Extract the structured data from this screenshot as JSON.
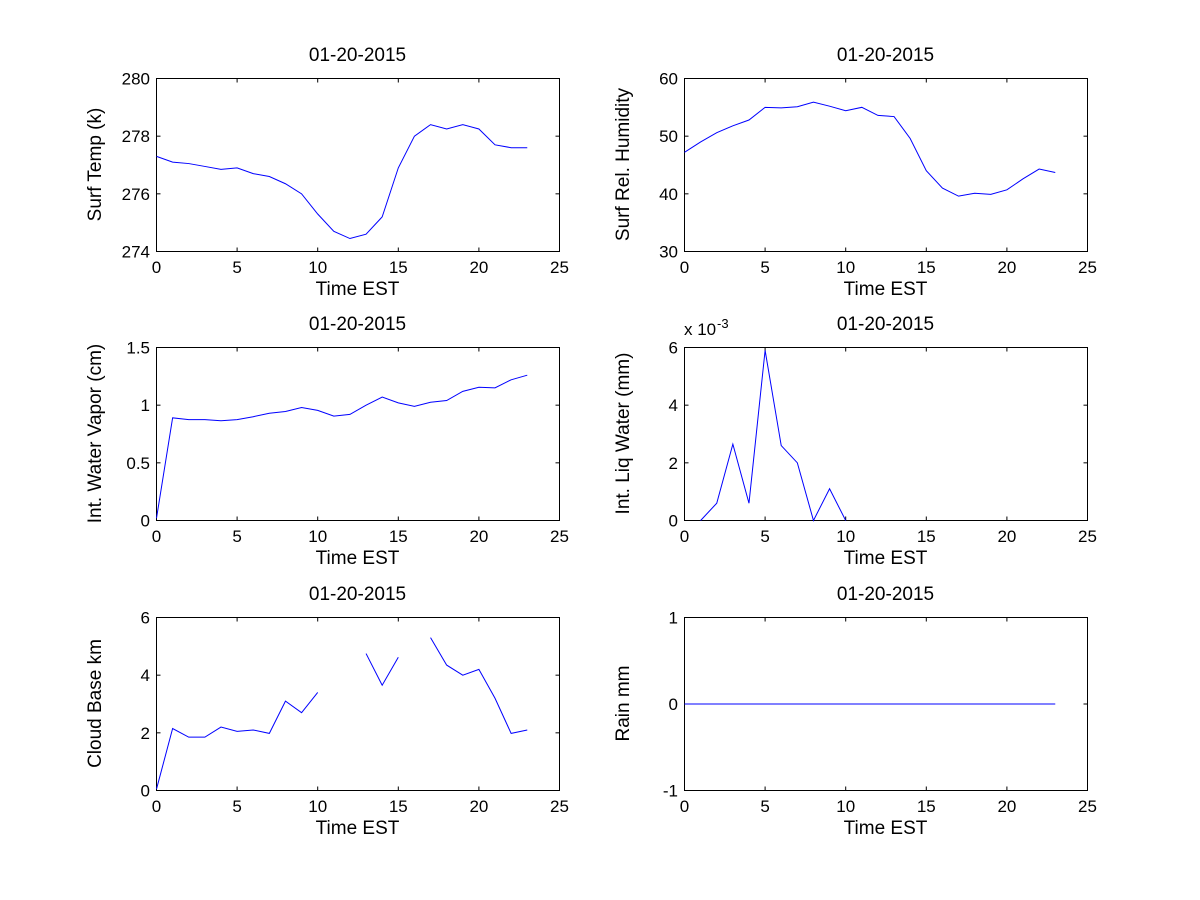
{
  "chart_data": [
    {
      "type": "line",
      "title": "01-20-2015",
      "xlabel": "Time EST",
      "ylabel": "Surf Temp (k)",
      "xlim": [
        0,
        25
      ],
      "ylim": [
        274,
        280
      ],
      "xticks": [
        "0",
        "5",
        "10",
        "15",
        "20",
        "25"
      ],
      "yticks": [
        "274",
        "276",
        "278",
        "280"
      ],
      "exponent": "",
      "series": [
        {
          "name": "Surf Temp",
          "color": "#0000ff",
          "x": [
            0,
            1,
            2,
            3,
            4,
            5,
            6,
            7,
            8,
            9,
            10,
            11,
            12,
            13,
            14,
            15,
            16,
            17,
            18,
            19,
            20,
            21,
            22,
            23
          ],
          "y": [
            277.3,
            277.1,
            277.05,
            276.95,
            276.85,
            276.9,
            276.7,
            276.6,
            276.35,
            276.0,
            275.3,
            274.7,
            274.45,
            274.6,
            275.2,
            276.9,
            278.0,
            278.4,
            278.25,
            278.4,
            278.25,
            277.7,
            277.6,
            277.6
          ]
        }
      ]
    },
    {
      "type": "line",
      "title": "01-20-2015",
      "xlabel": "Time EST",
      "ylabel": "Surf Rel. Humidity",
      "xlim": [
        0,
        25
      ],
      "ylim": [
        30,
        60
      ],
      "xticks": [
        "0",
        "5",
        "10",
        "15",
        "20",
        "25"
      ],
      "yticks": [
        "30",
        "40",
        "50",
        "60"
      ],
      "exponent": "",
      "series": [
        {
          "name": "Surf Rel. Humidity",
          "color": "#0000ff",
          "x": [
            0,
            1,
            2,
            3,
            4,
            5,
            6,
            7,
            8,
            9,
            10,
            11,
            12,
            13,
            14,
            15,
            16,
            17,
            18,
            19,
            20,
            21,
            22,
            23
          ],
          "y": [
            47.2,
            49.0,
            50.6,
            51.8,
            52.8,
            55.0,
            54.9,
            55.1,
            55.9,
            55.2,
            54.4,
            55.0,
            53.6,
            53.4,
            49.6,
            44.0,
            41.0,
            39.6,
            40.1,
            39.9,
            40.7,
            42.6,
            44.3,
            43.7
          ]
        }
      ]
    },
    {
      "type": "line",
      "title": "01-20-2015",
      "xlabel": "Time EST",
      "ylabel": "Int. Water Vapor (cm)",
      "xlim": [
        0,
        25
      ],
      "ylim": [
        0,
        1.5
      ],
      "xticks": [
        "0",
        "5",
        "10",
        "15",
        "20",
        "25"
      ],
      "yticks": [
        "0",
        "0.5",
        "1",
        "1.5"
      ],
      "exponent": "",
      "series": [
        {
          "name": "Int. Water Vapor",
          "color": "#0000ff",
          "x": [
            0,
            1,
            2,
            3,
            4,
            5,
            6,
            7,
            8,
            9,
            10,
            11,
            12,
            13,
            14,
            15,
            16,
            17,
            18,
            19,
            20,
            21,
            22,
            23
          ],
          "y": [
            0.02,
            0.89,
            0.875,
            0.875,
            0.865,
            0.875,
            0.9,
            0.93,
            0.945,
            0.98,
            0.955,
            0.905,
            0.92,
            1.0,
            1.07,
            1.02,
            0.99,
            1.025,
            1.04,
            1.12,
            1.155,
            1.15,
            1.22,
            1.26
          ]
        }
      ]
    },
    {
      "type": "line",
      "title": "01-20-2015",
      "xlabel": "Time EST",
      "ylabel": "Int. Liq Water (mm)",
      "xlim": [
        0,
        25
      ],
      "ylim": [
        0,
        6
      ],
      "xticks": [
        "0",
        "5",
        "10",
        "15",
        "20",
        "25"
      ],
      "yticks": [
        "0",
        "2",
        "4",
        "6"
      ],
      "exponent": "x 10",
      "exponent_power": "-3",
      "series": [
        {
          "name": "Int. Liq Water",
          "color": "#0000ff",
          "x": [
            1,
            2,
            3,
            4,
            5,
            6,
            7,
            8,
            9,
            10
          ],
          "y": [
            0,
            0.6,
            2.65,
            0.6,
            5.9,
            2.6,
            2.0,
            0,
            1.1,
            0
          ]
        }
      ]
    },
    {
      "type": "line",
      "title": "01-20-2015",
      "xlabel": "Time EST",
      "ylabel": "Cloud Base km",
      "xlim": [
        0,
        25
      ],
      "ylim": [
        0,
        6
      ],
      "xticks": [
        "0",
        "5",
        "10",
        "15",
        "20",
        "25"
      ],
      "yticks": [
        "0",
        "2",
        "4",
        "6"
      ],
      "exponent": "",
      "series": [
        {
          "name": "Cloud Base",
          "color": "#0000ff",
          "x": [
            0,
            1,
            2,
            3,
            4,
            5,
            6,
            7,
            8,
            9,
            10,
            11,
            12,
            13,
            14,
            15,
            16,
            17,
            18,
            19,
            20,
            21,
            22,
            23
          ],
          "y": [
            0.05,
            2.15,
            1.85,
            1.85,
            2.2,
            2.05,
            2.1,
            1.98,
            3.1,
            2.7,
            3.4,
            null,
            null,
            4.75,
            3.65,
            4.62,
            null,
            5.3,
            4.35,
            4.0,
            4.2,
            3.2,
            1.98,
            2.1
          ]
        }
      ]
    },
    {
      "type": "line",
      "title": "01-20-2015",
      "xlabel": "Time EST",
      "ylabel": "Rain mm",
      "xlim": [
        0,
        25
      ],
      "ylim": [
        -1,
        1
      ],
      "xticks": [
        "0",
        "5",
        "10",
        "15",
        "20",
        "25"
      ],
      "yticks": [
        "-1",
        "0",
        "1"
      ],
      "exponent": "",
      "series": [
        {
          "name": "Rain",
          "color": "#0000ff",
          "x": [
            0,
            1,
            2,
            3,
            4,
            5,
            6,
            7,
            8,
            9,
            10,
            11,
            12,
            13,
            14,
            15,
            16,
            17,
            18,
            19,
            20,
            21,
            22,
            23
          ],
          "y": [
            0,
            0,
            0,
            0,
            0,
            0,
            0,
            0,
            0,
            0,
            0,
            0,
            0,
            0,
            0,
            0,
            0,
            0,
            0,
            0,
            0,
            0,
            0,
            0
          ]
        }
      ]
    }
  ]
}
